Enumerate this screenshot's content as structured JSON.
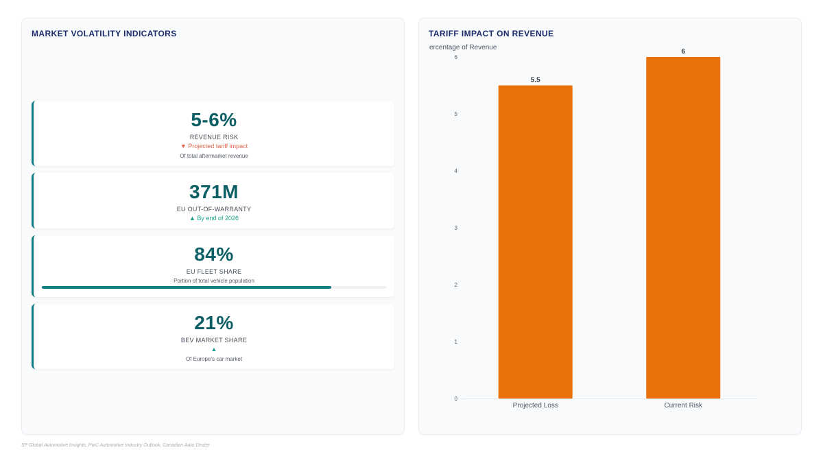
{
  "left_panel": {
    "title": "MARKET VOLATILITY INDICATORS",
    "kpis": [
      {
        "value": "5-6%",
        "label": "REVENUE RISK",
        "trend": "▼ Projected tariff impact",
        "trend_dir": "down",
        "desc": "Of total aftermarket revenue"
      },
      {
        "value": "371M",
        "label": "EU OUT-OF-WARRANTY",
        "trend": "▲ By end of 2026",
        "trend_dir": "up"
      },
      {
        "value": "84%",
        "label": "EU FLEET SHARE",
        "desc": "Portion of total vehicle population",
        "progress": 0.84
      },
      {
        "value": "21%",
        "label": "BEV MARKET SHARE",
        "trend": "▲",
        "trend_dir": "up",
        "desc": "Of Europe’s car market"
      }
    ]
  },
  "right_panel": {
    "title": "TARIFF IMPACT ON REVENUE"
  },
  "chart_data": {
    "type": "bar",
    "title": "TARIFF IMPACT ON REVENUE",
    "ylabel": "ercentage of Revenue",
    "categories": [
      "Projected Loss",
      "Current Risk"
    ],
    "values": [
      5.5,
      6
    ],
    "data_labels": [
      "5.5",
      "6"
    ],
    "yticks": [
      "0",
      "1",
      "2",
      "3",
      "4",
      "5",
      "6"
    ],
    "ylim": [
      0,
      6
    ],
    "bar_color": "#e8710a",
    "grid": false,
    "legend": "none"
  },
  "footer": {
    "source": "SP Global Automotive Insights, PwC Automotive Industry Outlook, Canadian Auto Dealer"
  }
}
